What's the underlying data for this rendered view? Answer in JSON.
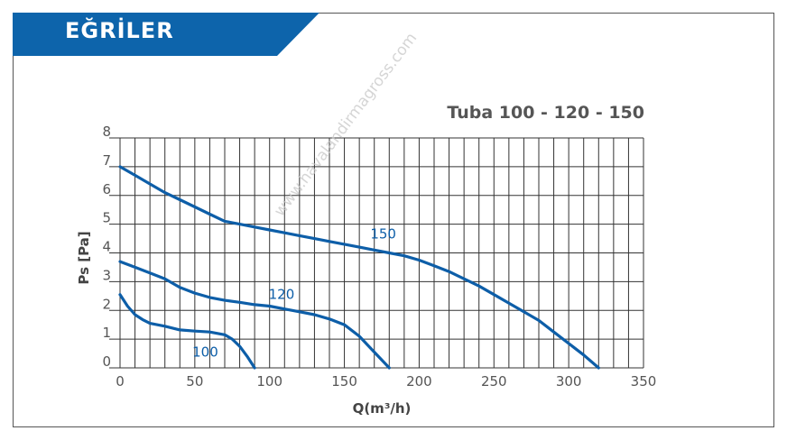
{
  "header": {
    "title": "EĞRİLER",
    "banner_color": "#0d64ab"
  },
  "watermark": "www.havalandirmagross.com",
  "chart_data": {
    "type": "line",
    "title": "Tuba 100 - 120 - 150",
    "xlabel": "Q(m³/h)",
    "ylabel": "Ps [Pa]",
    "xlim": [
      0,
      350
    ],
    "ylim": [
      0,
      8
    ],
    "x_ticks": [
      0,
      50,
      100,
      150,
      200,
      250,
      300,
      350
    ],
    "y_ticks": [
      0,
      1,
      2,
      3,
      4,
      5,
      6,
      7,
      8
    ],
    "x_minor_step": 10,
    "y_minor_step": 1,
    "grid": true,
    "line_color": "#0d5ea8",
    "series": [
      {
        "name": "100",
        "points": [
          [
            0,
            2.55
          ],
          [
            5,
            2.15
          ],
          [
            10,
            1.85
          ],
          [
            15,
            1.68
          ],
          [
            20,
            1.55
          ],
          [
            30,
            1.45
          ],
          [
            40,
            1.32
          ],
          [
            50,
            1.28
          ],
          [
            60,
            1.25
          ],
          [
            70,
            1.15
          ],
          [
            75,
            1.0
          ],
          [
            80,
            0.75
          ],
          [
            85,
            0.4
          ],
          [
            90,
            0.0
          ]
        ]
      },
      {
        "name": "120",
        "points": [
          [
            0,
            3.7
          ],
          [
            10,
            3.5
          ],
          [
            20,
            3.3
          ],
          [
            30,
            3.1
          ],
          [
            40,
            2.8
          ],
          [
            50,
            2.6
          ],
          [
            60,
            2.45
          ],
          [
            70,
            2.35
          ],
          [
            80,
            2.28
          ],
          [
            90,
            2.2
          ],
          [
            100,
            2.15
          ],
          [
            110,
            2.05
          ],
          [
            120,
            1.95
          ],
          [
            130,
            1.85
          ],
          [
            140,
            1.7
          ],
          [
            150,
            1.5
          ],
          [
            160,
            1.1
          ],
          [
            170,
            0.55
          ],
          [
            180,
            0.0
          ]
        ]
      },
      {
        "name": "150",
        "points": [
          [
            0,
            7.0
          ],
          [
            10,
            6.7
          ],
          [
            20,
            6.4
          ],
          [
            30,
            6.1
          ],
          [
            40,
            5.85
          ],
          [
            50,
            5.6
          ],
          [
            60,
            5.35
          ],
          [
            70,
            5.1
          ],
          [
            80,
            5.0
          ],
          [
            90,
            4.9
          ],
          [
            100,
            4.8
          ],
          [
            110,
            4.7
          ],
          [
            120,
            4.6
          ],
          [
            130,
            4.5
          ],
          [
            140,
            4.4
          ],
          [
            150,
            4.3
          ],
          [
            160,
            4.2
          ],
          [
            170,
            4.1
          ],
          [
            180,
            4.0
          ],
          [
            190,
            3.9
          ],
          [
            200,
            3.75
          ],
          [
            210,
            3.55
          ],
          [
            220,
            3.35
          ],
          [
            230,
            3.1
          ],
          [
            240,
            2.85
          ],
          [
            250,
            2.55
          ],
          [
            260,
            2.25
          ],
          [
            270,
            1.95
          ],
          [
            280,
            1.65
          ],
          [
            290,
            1.25
          ],
          [
            300,
            0.85
          ],
          [
            310,
            0.45
          ],
          [
            320,
            0.0
          ]
        ]
      }
    ],
    "series_labels": [
      {
        "text": "100",
        "x": 57,
        "y": 0.4
      },
      {
        "text": "120",
        "x": 108,
        "y": 2.4
      },
      {
        "text": "150",
        "x": 176,
        "y": 4.5
      }
    ]
  }
}
